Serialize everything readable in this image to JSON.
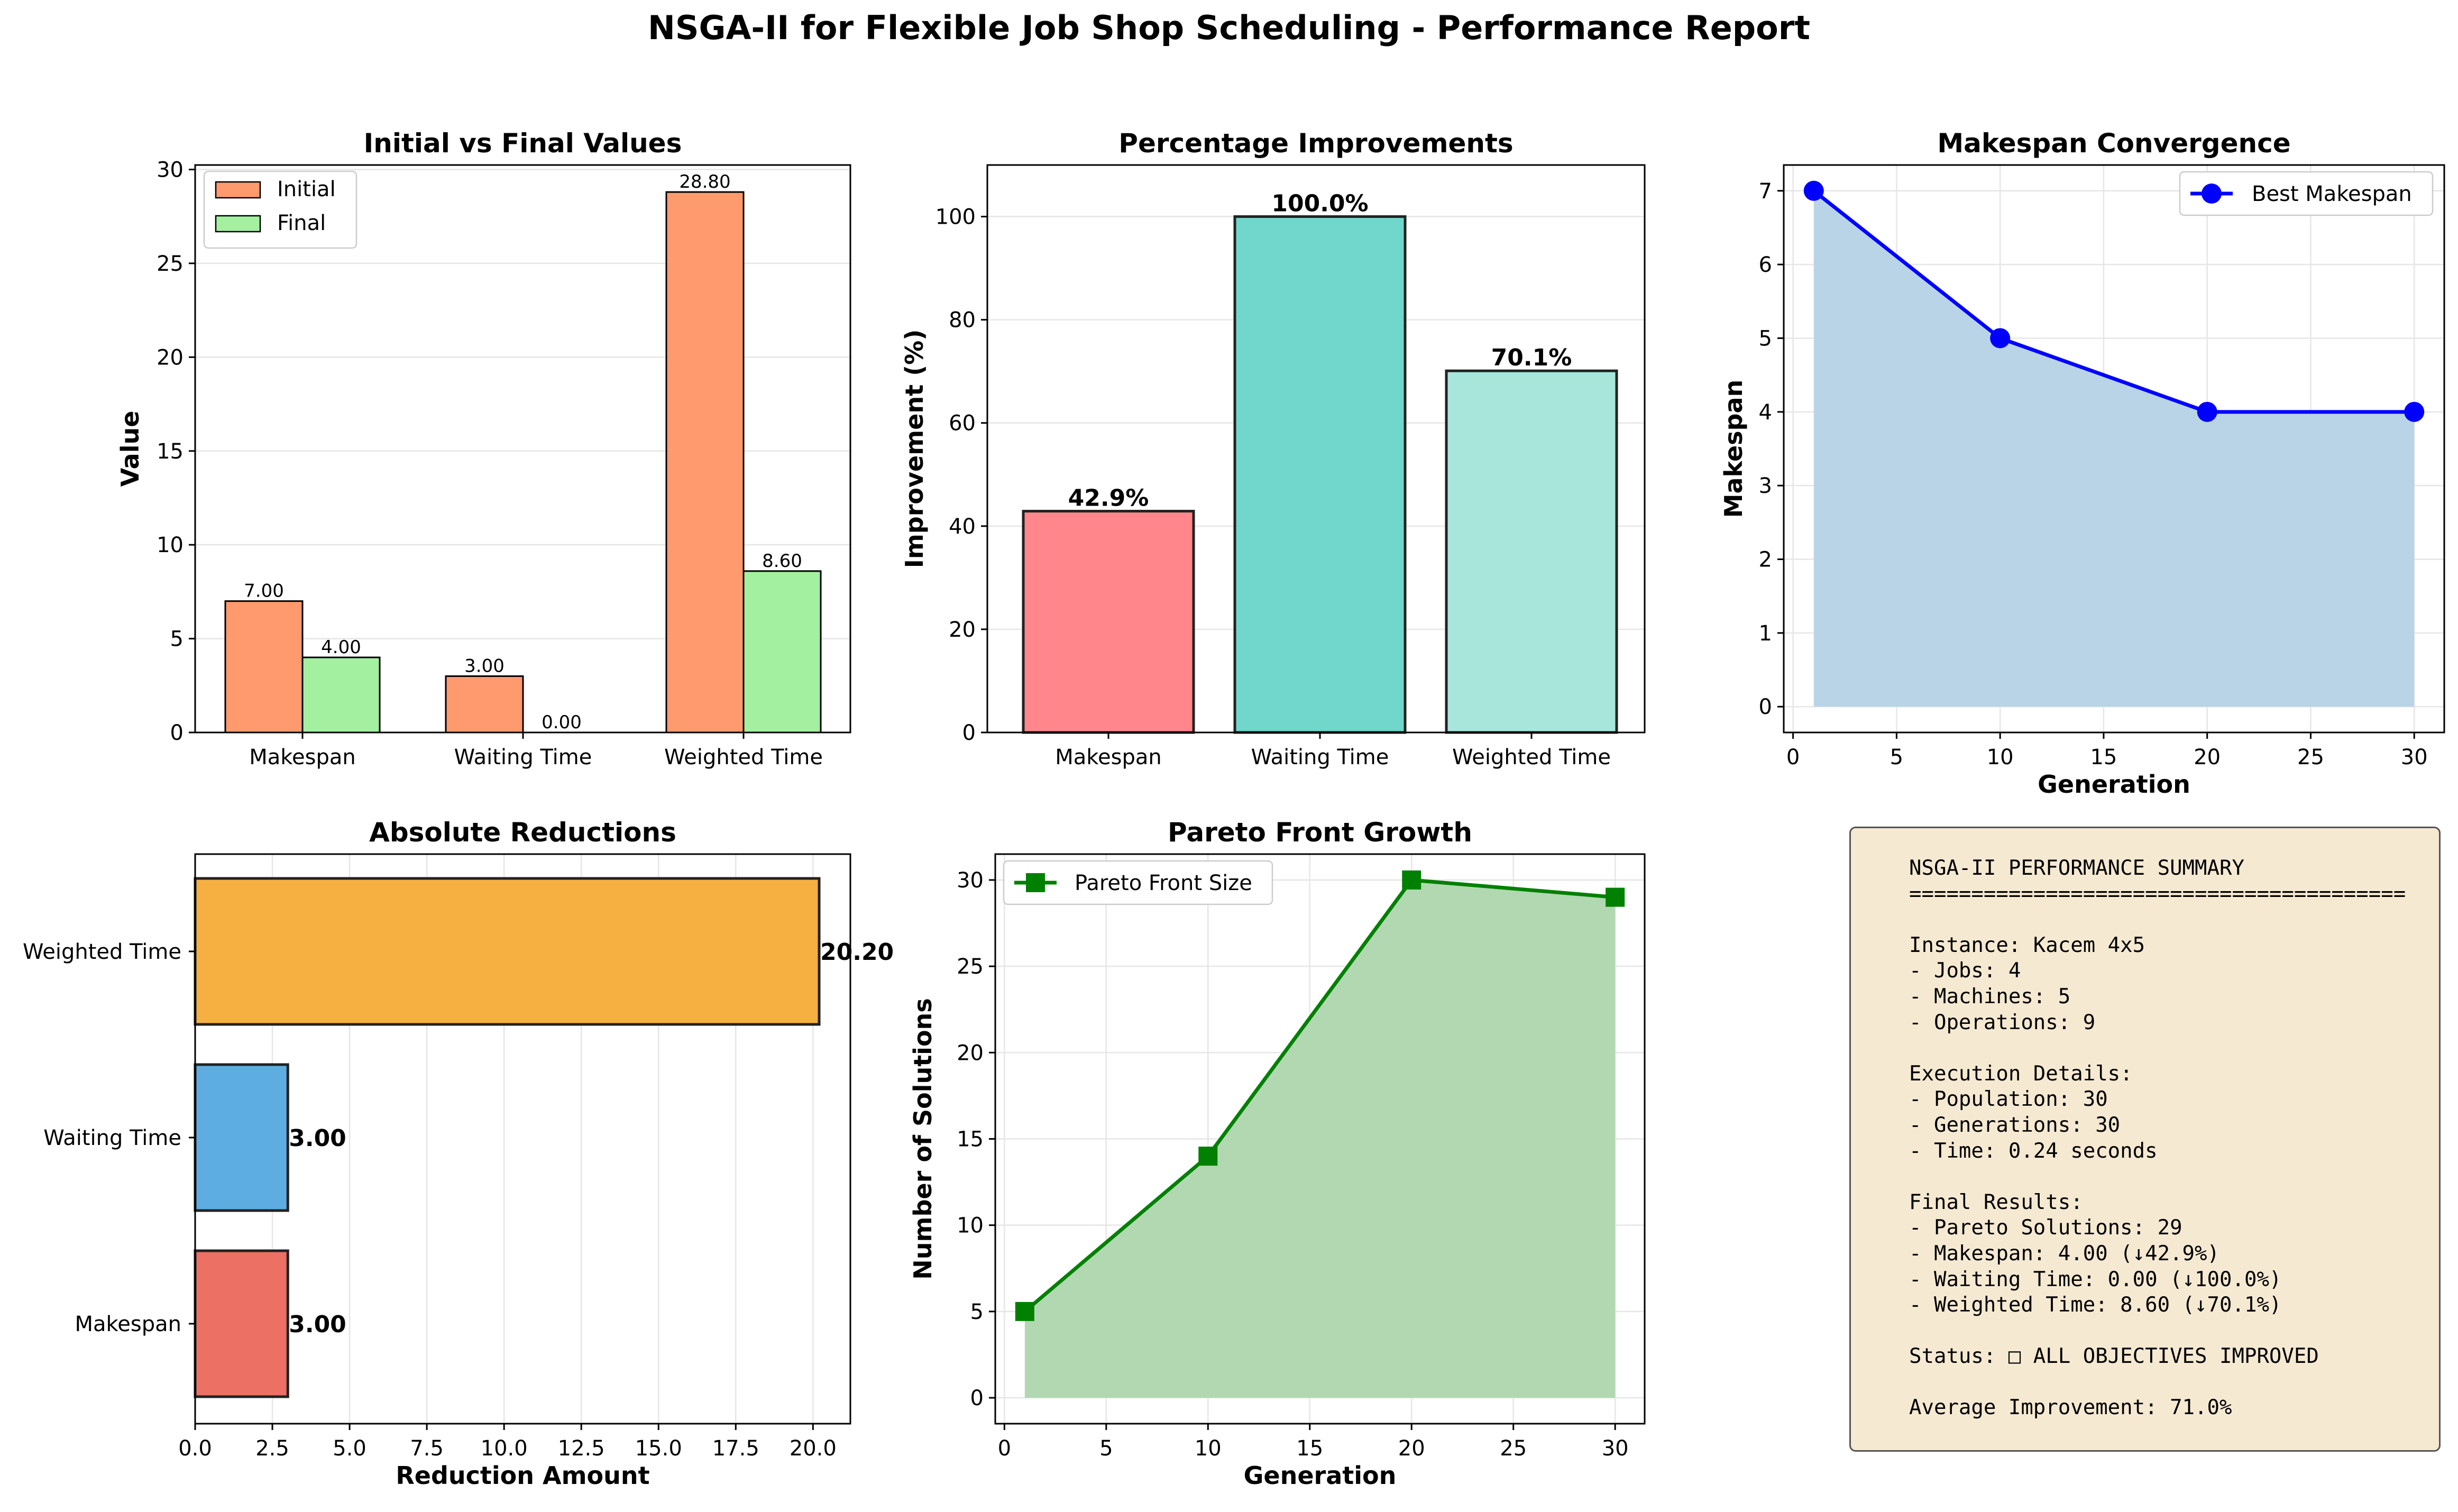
{
  "figure_title": "NSGA-II for Flexible Job Shop Scheduling - Performance Report",
  "chart_data": [
    {
      "type": "bar",
      "title": "Initial vs Final Values",
      "xlabel": "",
      "ylabel": "Value",
      "categories": [
        "Makespan",
        "Waiting Time",
        "Weighted Time"
      ],
      "series": [
        {
          "name": "Initial",
          "values": [
            7.0,
            3.0,
            28.8
          ],
          "labels": [
            "7.00",
            "3.00",
            "28.80"
          ],
          "color": "#ff9a6e"
        },
        {
          "name": "Final",
          "values": [
            4.0,
            0.0,
            8.6
          ],
          "labels": [
            "4.00",
            "0.00",
            "8.60"
          ],
          "color": "#a3f0a0"
        }
      ],
      "ylim": [
        0,
        30.24
      ],
      "yticks": [
        0,
        5,
        10,
        15,
        20,
        25,
        30
      ],
      "grid": true,
      "legend": "top-left"
    },
    {
      "type": "bar",
      "title": "Percentage Improvements",
      "xlabel": "",
      "ylabel": "Improvement (%)",
      "categories": [
        "Makespan",
        "Waiting Time",
        "Weighted Time"
      ],
      "values": [
        42.9,
        100.0,
        70.1
      ],
      "labels": [
        "42.9%",
        "100.0%",
        "70.1%"
      ],
      "colors": [
        "#ff878b",
        "#71d6cc",
        "#a8e6dc"
      ],
      "ylim": [
        0,
        110
      ],
      "yticks": [
        0,
        20,
        40,
        60,
        80,
        100
      ],
      "grid": true
    },
    {
      "type": "line",
      "title": "Makespan Convergence",
      "xlabel": "Generation",
      "ylabel": "Makespan",
      "series": [
        {
          "name": "Best Makespan",
          "x": [
            1,
            10,
            20,
            30
          ],
          "y": [
            7,
            5,
            4,
            4
          ],
          "color": "#0000ff",
          "fill": "#b9d4e7"
        }
      ],
      "xlim": [
        -0.45,
        31.45
      ],
      "ylim": [
        -0.35,
        7.35
      ],
      "xticks": [
        0,
        5,
        10,
        15,
        20,
        25,
        30
      ],
      "yticks": [
        0,
        1,
        2,
        3,
        4,
        5,
        6,
        7
      ],
      "grid": true,
      "legend": "top-right"
    },
    {
      "type": "bar",
      "orientation": "horizontal",
      "title": "Absolute Reductions",
      "xlabel": "Reduction Amount",
      "ylabel": "",
      "categories": [
        "Makespan",
        "Waiting Time",
        "Weighted Time"
      ],
      "values": [
        3.0,
        3.0,
        20.2
      ],
      "labels": [
        "3.00",
        "3.00",
        "20.20"
      ],
      "colors": [
        "#ec7063",
        "#5dade2",
        "#f5b041"
      ],
      "xlim": [
        0,
        21.21
      ],
      "xticks": [
        0.0,
        2.5,
        5.0,
        7.5,
        10.0,
        12.5,
        15.0,
        17.5,
        20.0
      ],
      "xtick_labels": [
        "0.0",
        "2.5",
        "5.0",
        "7.5",
        "10.0",
        "12.5",
        "15.0",
        "17.5",
        "20.0"
      ],
      "grid": true
    },
    {
      "type": "line",
      "title": "Pareto Front Growth",
      "xlabel": "Generation",
      "ylabel": "Number of Solutions",
      "series": [
        {
          "name": "Pareto Front Size",
          "x": [
            1,
            10,
            20,
            30
          ],
          "y": [
            5,
            14,
            30,
            29
          ],
          "color": "#008000",
          "fill": "#b1d8b1"
        }
      ],
      "xlim": [
        -0.45,
        31.45
      ],
      "ylim": [
        -1.5,
        31.5
      ],
      "xticks": [
        0,
        5,
        10,
        15,
        20,
        25,
        30
      ],
      "yticks": [
        0,
        5,
        10,
        15,
        20,
        25,
        30
      ],
      "grid": true,
      "legend": "top-left"
    }
  ],
  "summary": {
    "text": "NSGA-II PERFORMANCE SUMMARY\n========================================\n\nInstance: Kacem 4x5\n- Jobs: 4\n- Machines: 5\n- Operations: 9\n\nExecution Details:\n- Population: 30\n- Generations: 30\n- Time: 0.24 seconds\n\nFinal Results:\n- Pareto Solutions: 29\n- Makespan: 4.00 (↓42.9%)\n- Waiting Time: 0.00 (↓100.0%)\n- Weighted Time: 8.60 (↓70.1%)\n\nStatus: □ ALL OBJECTIVES IMPROVED\n\nAverage Improvement: 71.0%"
  }
}
